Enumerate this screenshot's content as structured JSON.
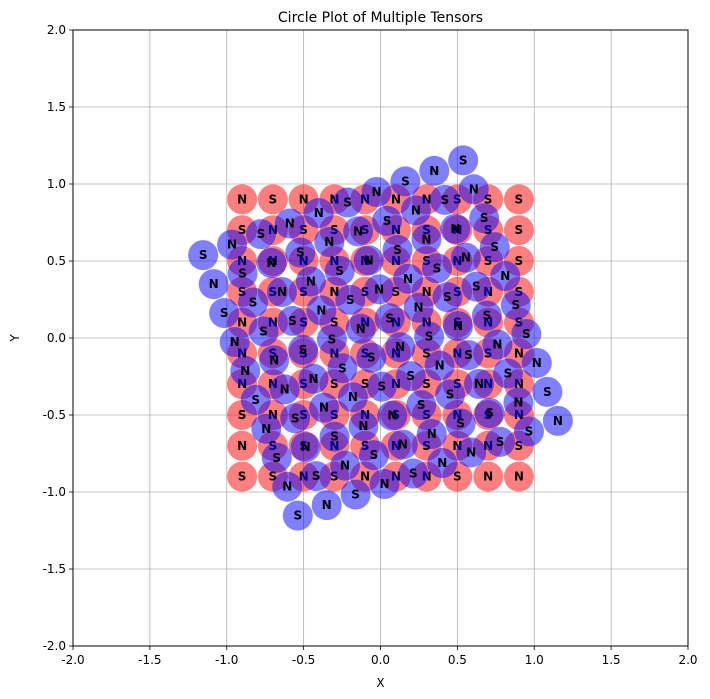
{
  "chart_data": {
    "type": "scatter",
    "title": "Circle Plot of Multiple Tensors",
    "xlabel": "X",
    "ylabel": "Y",
    "xlim": [
      -2,
      2
    ],
    "ylim": [
      -2,
      2
    ],
    "xticks": [
      "-2.0",
      "-1.5",
      "-1.0",
      "-0.5",
      "0.0",
      "0.5",
      "1.0",
      "1.5",
      "2.0"
    ],
    "yticks": [
      "-2.0",
      "-1.5",
      "-1.0",
      "-0.5",
      "0.0",
      "0.5",
      "1.0",
      "1.5",
      "2.0"
    ],
    "grid": true,
    "marker_opacity": 0.5,
    "series": [
      {
        "color": "#ff0000",
        "rotation_deg": 0,
        "grid_coords": [
          -0.9,
          -0.7,
          -0.5,
          -0.3,
          -0.1,
          0.1,
          0.3,
          0.5,
          0.7,
          0.9
        ],
        "rows": [
          [
            "N",
            "S",
            "N",
            "N",
            "N",
            "N",
            "N",
            "S",
            "S",
            "S"
          ],
          [
            "S",
            "N",
            "S",
            "S",
            "S",
            "N",
            "S",
            "N",
            "S",
            "S"
          ],
          [
            "N",
            "N",
            "N",
            "N",
            "N",
            "N",
            "S",
            "N",
            "S",
            "S"
          ],
          [
            "S",
            "S",
            "S",
            "N",
            "S",
            "S",
            "N",
            "S",
            "N",
            "S"
          ],
          [
            "N",
            "N",
            "S",
            "S",
            "N",
            "N",
            "N",
            "S",
            "N",
            "S"
          ],
          [
            "N",
            "S",
            "S",
            "N",
            "S",
            "N",
            "S",
            "N",
            "S",
            "N"
          ],
          [
            "N",
            "N",
            "S",
            "S",
            "S",
            "N",
            "S",
            "S",
            "N",
            "N"
          ],
          [
            "S",
            "N",
            "S",
            "S",
            "N",
            "S",
            "S",
            "N",
            "S",
            "N"
          ],
          [
            "N",
            "S",
            "S",
            "N",
            "S",
            "N",
            "S",
            "N",
            "N",
            "S"
          ],
          [
            "S",
            "S",
            "N",
            "S",
            "N",
            "N",
            "N",
            "S",
            "N",
            "N"
          ]
        ]
      },
      {
        "color": "#0000ff",
        "rotation_deg": 20,
        "grid_coords": [
          -0.9,
          -0.7,
          -0.5,
          -0.3,
          -0.1,
          0.1,
          0.3,
          0.5,
          0.7,
          0.9
        ],
        "rows": [
          [
            "S",
            "N",
            "S",
            "N",
            "N",
            "S",
            "N",
            "S",
            "N",
            "S"
          ],
          [
            "N",
            "S",
            "N",
            "S",
            "N",
            "N",
            "S",
            "N",
            "S",
            "N"
          ],
          [
            "S",
            "S",
            "N",
            "N",
            "S",
            "N",
            "S",
            "N",
            "N",
            "S"
          ],
          [
            "N",
            "S",
            "S",
            "N",
            "S",
            "N",
            "N",
            "S",
            "N",
            "S"
          ],
          [
            "N",
            "N",
            "S",
            "S",
            "N",
            "S",
            "N",
            "S",
            "S",
            "N"
          ],
          [
            "S",
            "N",
            "N",
            "S",
            "S",
            "N",
            "S",
            "N",
            "S",
            "S"
          ],
          [
            "N",
            "S",
            "N",
            "N",
            "S",
            "S",
            "N",
            "S",
            "N",
            "S"
          ],
          [
            "S",
            "N",
            "S",
            "N",
            "N",
            "S",
            "S",
            "N",
            "S",
            "N"
          ],
          [
            "N",
            "S",
            "N",
            "S",
            "N",
            "N",
            "S",
            "S",
            "N",
            "S"
          ],
          [
            "S",
            "N",
            "S",
            "N",
            "S",
            "N",
            "N",
            "S",
            "S",
            "N"
          ]
        ]
      }
    ]
  }
}
